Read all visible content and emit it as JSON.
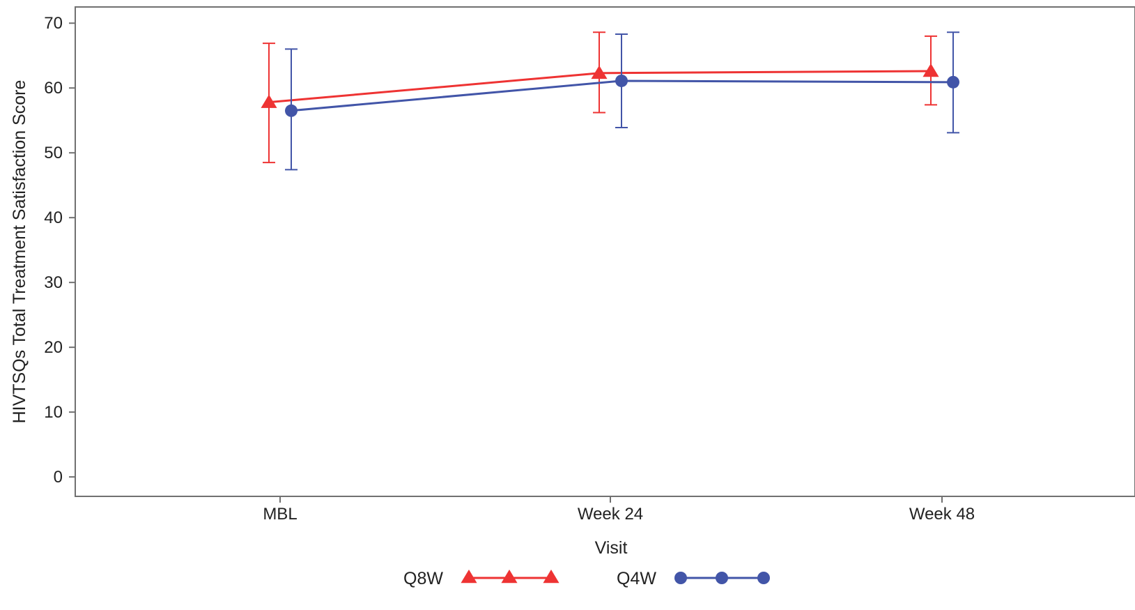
{
  "chart_data": {
    "type": "line",
    "xlabel": "Visit",
    "ylabel": "HIVTSQs Total Treatment Satisfaction Score",
    "categories": [
      "MBL",
      "Week 24",
      "Week 48"
    ],
    "ylim": [
      -3,
      72.5
    ],
    "yticks": [
      0,
      10,
      20,
      30,
      40,
      50,
      60,
      70
    ],
    "grid": false,
    "legend_position": "bottom",
    "series": [
      {
        "name": "Q8W",
        "color": "#ee3333",
        "marker": "triangle",
        "values": [
          57.8,
          62.3,
          62.6
        ],
        "error_low": [
          48.5,
          56.2,
          57.4
        ],
        "error_high": [
          66.9,
          68.6,
          68.0
        ]
      },
      {
        "name": "Q4W",
        "color": "#4255a8",
        "marker": "circle",
        "values": [
          56.5,
          61.1,
          60.9
        ],
        "error_low": [
          47.4,
          53.9,
          53.1
        ],
        "error_high": [
          66.0,
          68.3,
          68.6
        ]
      }
    ]
  }
}
